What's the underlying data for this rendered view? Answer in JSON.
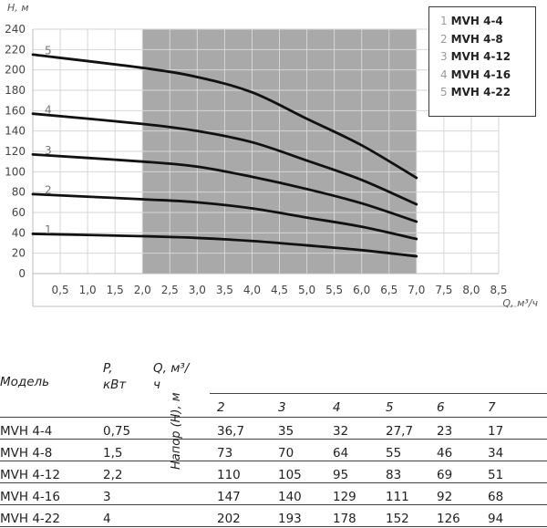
{
  "chart_data": {
    "type": "line",
    "ylabel": "H, м",
    "xlabel": "Q, м³/ч",
    "xlim": [
      0,
      8.5
    ],
    "ylim": [
      0,
      240
    ],
    "x_ticks": [
      "0,5",
      "1,0",
      "1,5",
      "2,0",
      "2,5",
      "3,0",
      "3,5",
      "4,0",
      "4,5",
      "5,0",
      "5,5",
      "6,0",
      "6,5",
      "7,0",
      "7,5",
      "8,0",
      "8,5"
    ],
    "x_tick_values": [
      0.5,
      1.0,
      1.5,
      2.0,
      2.5,
      3.0,
      3.5,
      4.0,
      4.5,
      5.0,
      5.5,
      6.0,
      6.5,
      7.0,
      7.5,
      8.0,
      8.5
    ],
    "y_ticks": [
      0,
      20,
      40,
      60,
      80,
      100,
      120,
      140,
      160,
      180,
      200,
      220,
      240
    ],
    "shaded_range": [
      2.0,
      7.0
    ],
    "shade_color": "#a9a9a9",
    "grid": true,
    "legend_position": "top-right",
    "series": [
      {
        "name": "MVH 4-4",
        "label": "1",
        "x": [
          0,
          2,
          3,
          4,
          5,
          6,
          7
        ],
        "values": [
          39,
          36.7,
          35,
          32,
          27.7,
          23,
          17
        ]
      },
      {
        "name": "MVH 4-8",
        "label": "2",
        "x": [
          0,
          2,
          3,
          4,
          5,
          6,
          7
        ],
        "values": [
          78,
          73,
          70,
          64,
          55,
          46,
          34
        ]
      },
      {
        "name": "MVH 4-12",
        "label": "3",
        "x": [
          0,
          2,
          3,
          4,
          5,
          6,
          7
        ],
        "values": [
          117,
          110,
          105,
          95,
          83,
          69,
          51
        ]
      },
      {
        "name": "MVH 4-16",
        "label": "4",
        "x": [
          0,
          2,
          3,
          4,
          5,
          6,
          7
        ],
        "values": [
          157,
          147,
          140,
          129,
          111,
          92,
          68
        ]
      },
      {
        "name": "MVH 4-22",
        "label": "5",
        "x": [
          0,
          2,
          3,
          4,
          5,
          6,
          7
        ],
        "values": [
          215,
          202,
          193,
          178,
          152,
          126,
          94
        ]
      }
    ]
  },
  "legend": [
    {
      "num": "1",
      "name": "MVH 4-4"
    },
    {
      "num": "2",
      "name": "MVH 4-8"
    },
    {
      "num": "3",
      "name": "MVH 4-12"
    },
    {
      "num": "4",
      "name": "MVH 4-16"
    },
    {
      "num": "5",
      "name": "MVH 4-22"
    }
  ],
  "table": {
    "col_model": "Модель",
    "col_power": "P, кВт",
    "col_flow": "Q, м³/ч",
    "head_label": "Напор (H), м",
    "flow_values": [
      "2",
      "3",
      "4",
      "5",
      "6",
      "7"
    ],
    "rows": [
      {
        "model": "MVH 4-4",
        "power": "0,75",
        "heads": [
          "36,7",
          "35",
          "32",
          "27,7",
          "23",
          "17"
        ]
      },
      {
        "model": "MVH 4-8",
        "power": "1,5",
        "heads": [
          "73",
          "70",
          "64",
          "55",
          "46",
          "34"
        ]
      },
      {
        "model": "MVH 4-12",
        "power": "2,2",
        "heads": [
          "110",
          "105",
          "95",
          "83",
          "69",
          "51"
        ]
      },
      {
        "model": "MVH 4-16",
        "power": "3",
        "heads": [
          "147",
          "140",
          "129",
          "111",
          "92",
          "68"
        ]
      },
      {
        "model": "MVH 4-22",
        "power": "4",
        "heads": [
          "202",
          "193",
          "178",
          "152",
          "126",
          "94"
        ]
      }
    ]
  }
}
